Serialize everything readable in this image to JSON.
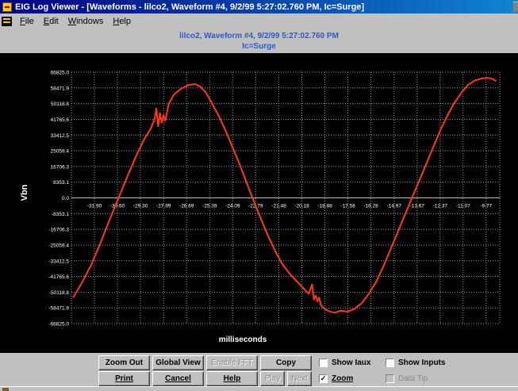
{
  "window": {
    "title": "EIG Log Viewer - [Waveforms - lilco2, Waveform #4, 9/2/99 5:27:02.760 PM, Ic=Surge]"
  },
  "menu": {
    "items": [
      {
        "label": "File",
        "underline": "F",
        "rest": "ile"
      },
      {
        "label": "Edit",
        "underline": "E",
        "rest": "dit"
      },
      {
        "label": "Windows",
        "underline": "W",
        "rest": "indows"
      },
      {
        "label": "Help",
        "underline": "H",
        "rest": "elp"
      }
    ]
  },
  "chart_header": {
    "line1": "lilco2, Waveform #4, 9/2/99 5:27:02.760 PM",
    "line2": "Ic=Surge"
  },
  "chart_data": {
    "type": "line",
    "title": "",
    "xlabel": "milliseconds",
    "ylabel": "Vbn",
    "xlim": [
      -33.2,
      -9.0
    ],
    "ylim": [
      -66825.0,
      66825.0
    ],
    "y_ticks": [
      "66825.0",
      "58471.9",
      "50118.8",
      "41765.6",
      "33412.5",
      "25059.4",
      "16706.3",
      "8353.1",
      "0.0",
      "-8353.1",
      "-16706.3",
      "-25059.4",
      "-33412.5",
      "-41765.6",
      "-50118.8",
      "-58471.9",
      "-66825.0"
    ],
    "y_tick_values": [
      66825.0,
      58471.9,
      50118.8,
      41765.6,
      33412.5,
      25059.4,
      16706.3,
      8353.1,
      0.0,
      -8353.1,
      -16706.3,
      -25059.4,
      -33412.5,
      -41765.6,
      -50118.8,
      -58471.9,
      -66825.0
    ],
    "x_ticks": [
      "-31.90",
      "-30.60",
      "-29.30",
      "-27.99",
      "-26.69",
      "-25.39",
      "-24.09",
      "-22.79",
      "-21.48",
      "-20.18",
      "-18.88",
      "-17.58",
      "-16.28",
      "-14.97",
      "-13.67",
      "-12.37",
      "-11.07",
      "-9.77"
    ],
    "x_tick_values": [
      -31.9,
      -30.6,
      -29.3,
      -27.99,
      -26.69,
      -25.39,
      -24.09,
      -22.79,
      -21.48,
      -20.18,
      -18.88,
      -17.58,
      -16.28,
      -14.97,
      -13.67,
      -12.37,
      -11.07,
      -9.77
    ],
    "grid": true,
    "line_color": "#ff3a10",
    "series": [
      {
        "x": [
          -33.1,
          -32.6,
          -32.1,
          -31.6,
          -31.1,
          -30.6,
          -30.1,
          -29.6,
          -29.1,
          -28.7,
          -28.5,
          -28.4,
          -28.3,
          -28.2,
          -28.1,
          -28.0,
          -27.9,
          -27.7,
          -27.4,
          -27.0,
          -26.6,
          -26.2,
          -25.9,
          -25.6,
          -25.3,
          -24.9,
          -24.5,
          -24.1,
          -23.7,
          -23.3,
          -22.9,
          -22.5,
          -22.1,
          -21.7,
          -21.3,
          -20.9,
          -20.5,
          -20.1,
          -19.8,
          -19.6,
          -19.5,
          -19.4,
          -19.3,
          -19.2,
          -19.1,
          -18.9,
          -18.6,
          -18.3,
          -18.0,
          -17.6,
          -17.2,
          -16.8,
          -16.4,
          -16.0,
          -15.6,
          -15.2,
          -14.8,
          -14.4,
          -14.0,
          -13.6,
          -13.2,
          -12.8,
          -12.4,
          -12.0,
          -11.6,
          -11.2,
          -10.8,
          -10.4,
          -10.0,
          -9.7,
          -9.4,
          -9.2
        ],
        "y": [
          -53000,
          -45000,
          -36000,
          -25000,
          -13000,
          -1500,
          10000,
          21000,
          31000,
          37000,
          42000,
          47500,
          38000,
          45000,
          40000,
          44000,
          41000,
          50000,
          55000,
          58000,
          60000,
          60500,
          59000,
          56000,
          51000,
          44000,
          36000,
          27000,
          18000,
          8000,
          -1500,
          -11000,
          -20000,
          -28000,
          -35000,
          -40000,
          -44000,
          -48000,
          -51000,
          -46000,
          -54000,
          -52000,
          -55000,
          -53000,
          -57000,
          -59000,
          -60500,
          -61000,
          -60000,
          -60500,
          -59000,
          -56000,
          -51000,
          -45000,
          -37000,
          -28000,
          -19000,
          -10000,
          -1000,
          8000,
          17000,
          26000,
          35000,
          43000,
          50000,
          55500,
          60000,
          62500,
          63500,
          63800,
          63200,
          62000
        ]
      }
    ]
  },
  "buttons": {
    "zoom_out": "Zoom Out",
    "global_view": "Global View",
    "enable_fft": "Enable FFT",
    "copy": "Copy",
    "print": "Print",
    "cancel": "Cancel",
    "help": "Help",
    "play": "Play",
    "next": "Next"
  },
  "checkboxes": {
    "show_iaux": {
      "label": "Show Iaux",
      "checked": false
    },
    "show_inputs": {
      "label": "Show Inputs",
      "checked": false
    },
    "zoom": {
      "label": "Zoom",
      "checked": true
    },
    "data_tip": {
      "label": "Data Tip",
      "checked": false
    }
  }
}
